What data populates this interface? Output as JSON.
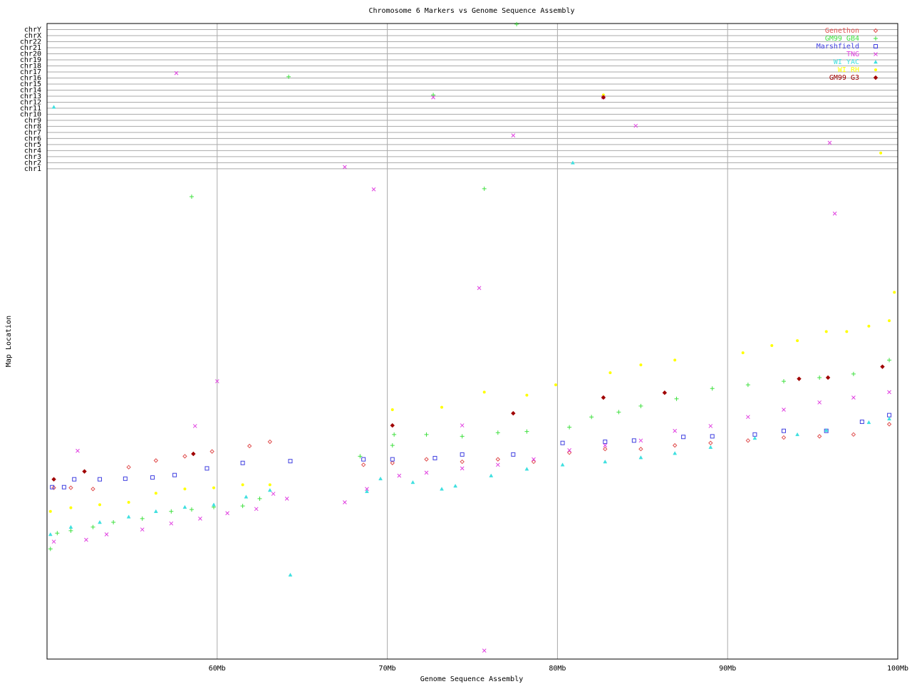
{
  "chart_data": {
    "type": "scatter",
    "title": "Chromosome 6 Markers vs Genome Sequence Assembly",
    "x_label": "Genome Sequence Assembly",
    "y_label": "Map Location",
    "xlim": [
      50,
      100
    ],
    "ylim": [
      0,
      105
    ],
    "xticks": [
      {
        "value": 60,
        "label": "60Mb"
      },
      {
        "value": 70,
        "label": "70Mb"
      },
      {
        "value": 80,
        "label": "80Mb"
      },
      {
        "value": 90,
        "label": "90Mb"
      },
      {
        "value": 100,
        "label": "100Mb"
      }
    ],
    "yticks": [
      {
        "value": 81,
        "label": "chr1"
      },
      {
        "value": 82,
        "label": "chr2"
      },
      {
        "value": 83,
        "label": "chr3"
      },
      {
        "value": 84,
        "label": "chr4"
      },
      {
        "value": 85,
        "label": "chr5"
      },
      {
        "value": 86,
        "label": "chr6"
      },
      {
        "value": 87,
        "label": "chr7"
      },
      {
        "value": 88,
        "label": "chr8"
      },
      {
        "value": 89,
        "label": "chr9"
      },
      {
        "value": 90,
        "label": "chr10"
      },
      {
        "value": 91,
        "label": "chr11"
      },
      {
        "value": 92,
        "label": "chr12"
      },
      {
        "value": 93,
        "label": "chr13"
      },
      {
        "value": 94,
        "label": "chr14"
      },
      {
        "value": 95,
        "label": "chr15"
      },
      {
        "value": 96,
        "label": "chr16"
      },
      {
        "value": 97,
        "label": "chr17"
      },
      {
        "value": 98,
        "label": "chr18"
      },
      {
        "value": 99,
        "label": "chr19"
      },
      {
        "value": 100,
        "label": "chr20"
      },
      {
        "value": 101,
        "label": "chr21"
      },
      {
        "value": 102,
        "label": "chr22"
      },
      {
        "value": 103,
        "label": "chrX"
      },
      {
        "value": 104,
        "label": "chrY"
      }
    ],
    "grid": true,
    "legend": "top-right",
    "series": [
      {
        "name": "Genethon",
        "color": "#e05050",
        "marker": "diamond",
        "x": [
          50.4,
          51.4,
          52.7,
          54.8,
          56.4,
          58.1,
          59.7,
          61.9,
          63.1,
          68.6,
          70.3,
          72.3,
          74.4,
          76.5,
          78.6,
          80.7,
          82.8,
          84.9,
          86.9,
          89.0,
          91.2,
          93.3,
          95.4,
          97.4,
          99.5
        ],
        "values": [
          28.3,
          28.3,
          28.1,
          31.7,
          32.8,
          33.5,
          34.3,
          35.2,
          35.9,
          32.1,
          32.4,
          33.0,
          32.6,
          33.0,
          32.6,
          34.1,
          34.7,
          34.7,
          35.3,
          35.7,
          36.1,
          36.6,
          36.8,
          37.1,
          38.8
        ]
      },
      {
        "name": "GM99 GB4",
        "color": "#40e040",
        "marker": "plus",
        "x": [
          50.2,
          50.6,
          51.4,
          52.7,
          53.9,
          55.6,
          57.3,
          58.5,
          59.8,
          61.5,
          62.5,
          68.4,
          70.3,
          70.4,
          72.3,
          74.4,
          76.5,
          78.2,
          80.7,
          82.0,
          83.6,
          84.9,
          87.0,
          89.1,
          91.2,
          93.3,
          95.4,
          97.4,
          99.5,
          58.5,
          64.2,
          72.7,
          77.6,
          75.7
        ],
        "values": [
          18.2,
          20.8,
          21.2,
          21.8,
          22.6,
          23.2,
          24.4,
          24.7,
          25.1,
          25.3,
          26.5,
          33.5,
          35.3,
          37.1,
          37.1,
          36.8,
          37.4,
          37.6,
          38.3,
          40.0,
          40.8,
          41.8,
          43.0,
          44.7,
          45.3,
          45.9,
          46.5,
          47.1,
          49.4,
          76.4,
          96.2,
          93.2,
          104.9,
          77.7
        ]
      },
      {
        "name": "Marshfield",
        "color": "#4040e0",
        "marker": "square",
        "x": [
          50.3,
          51.0,
          51.6,
          53.1,
          54.6,
          56.2,
          57.5,
          59.4,
          61.5,
          64.3,
          68.6,
          70.3,
          72.8,
          74.4,
          77.4,
          80.3,
          82.8,
          84.5,
          87.4,
          89.1,
          91.6,
          93.3,
          95.8,
          97.9,
          99.5
        ],
        "values": [
          28.4,
          28.4,
          29.7,
          29.7,
          29.8,
          30.0,
          30.4,
          31.5,
          32.4,
          32.7,
          33.0,
          33.0,
          33.2,
          33.8,
          33.8,
          35.7,
          35.9,
          36.1,
          36.7,
          36.8,
          37.1,
          37.7,
          37.7,
          39.2,
          40.3
        ]
      },
      {
        "name": "TNG",
        "color": "#e040e0",
        "marker": "cross",
        "x": [
          50.4,
          52.3,
          53.5,
          55.6,
          57.3,
          59.0,
          60.6,
          62.3,
          63.3,
          64.1,
          67.5,
          68.8,
          70.7,
          72.3,
          74.4,
          76.5,
          78.6,
          80.7,
          82.8,
          84.9,
          86.9,
          89.0,
          91.2,
          93.3,
          95.4,
          97.4,
          99.5,
          51.8,
          57.6,
          60.0,
          58.7,
          67.5,
          69.2,
          72.7,
          75.4,
          75.7,
          77.4,
          82.7,
          84.6,
          96.0,
          96.3,
          74.4
        ],
        "values": [
          19.4,
          19.7,
          20.6,
          21.4,
          22.4,
          23.2,
          24.1,
          24.8,
          27.3,
          26.5,
          25.9,
          28.1,
          30.3,
          30.8,
          31.5,
          32.1,
          33.0,
          34.5,
          35.3,
          36.1,
          37.7,
          38.5,
          40.0,
          41.2,
          42.4,
          43.2,
          44.1,
          34.4,
          96.8,
          45.9,
          38.5,
          81.3,
          77.6,
          92.8,
          61.3,
          1.4,
          86.5,
          92.8,
          88.1,
          85.3,
          73.6,
          38.6
        ]
      },
      {
        "name": "WI YAC",
        "color": "#40e0e0",
        "marker": "triangle",
        "x": [
          50.4,
          50.2,
          51.4,
          53.1,
          54.8,
          56.4,
          58.1,
          59.8,
          61.7,
          63.1,
          64.3,
          68.8,
          69.6,
          71.5,
          73.2,
          74.0,
          76.1,
          78.2,
          80.3,
          80.9,
          82.8,
          84.9,
          86.9,
          89.0,
          91.6,
          94.1,
          95.8,
          98.3,
          99.5
        ],
        "values": [
          91.2,
          20.6,
          21.8,
          22.6,
          23.5,
          24.4,
          25.1,
          25.5,
          26.8,
          27.9,
          13.9,
          27.7,
          29.8,
          29.2,
          28.1,
          28.6,
          30.3,
          31.4,
          32.1,
          82.0,
          32.6,
          33.3,
          34.0,
          35.0,
          36.5,
          37.1,
          37.8,
          39.1,
          39.7
        ]
      },
      {
        "name": "WI RH",
        "color": "#ffff00",
        "marker": "dot",
        "x": [
          50.2,
          51.4,
          53.1,
          54.8,
          56.4,
          58.1,
          59.8,
          61.5,
          63.1,
          70.3,
          73.2,
          75.7,
          78.2,
          79.9,
          83.1,
          84.9,
          86.9,
          90.9,
          92.6,
          94.1,
          95.8,
          97.0,
          98.3,
          99.5,
          99.8,
          82.7,
          99.0
        ],
        "values": [
          24.4,
          25.0,
          25.5,
          25.9,
          27.4,
          28.1,
          28.3,
          28.8,
          28.8,
          41.2,
          41.6,
          44.1,
          43.6,
          45.3,
          47.3,
          48.6,
          49.4,
          50.6,
          51.8,
          52.6,
          54.1,
          54.1,
          55.0,
          55.9,
          60.6,
          93.2,
          83.6
        ]
      },
      {
        "name": "GM99 G3",
        "color": "#a00000",
        "marker": "filled-diamond",
        "x": [
          50.4,
          52.2,
          58.6,
          70.3,
          77.4,
          82.7,
          86.3,
          94.2,
          95.9,
          99.1,
          82.7
        ],
        "values": [
          29.7,
          31.0,
          33.9,
          38.6,
          40.6,
          43.2,
          44.0,
          46.3,
          46.5,
          48.3,
          92.8
        ]
      }
    ]
  }
}
